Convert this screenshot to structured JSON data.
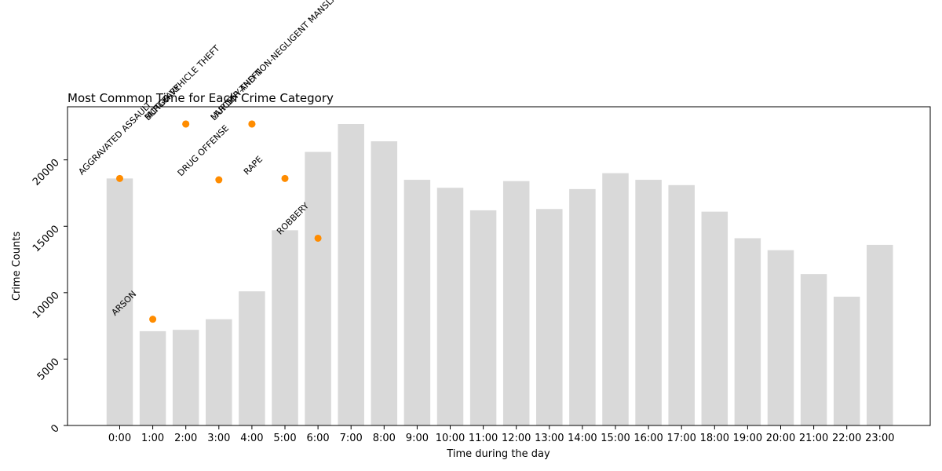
{
  "chart_data": {
    "type": "bar",
    "title": "Most Common Time for Each Crime Category",
    "xlabel": "Time during the day",
    "ylabel": "Crime Counts",
    "ylim": [
      0,
      24000
    ],
    "yticks": [
      0,
      5000,
      10000,
      15000,
      20000
    ],
    "grid": false,
    "categories": [
      "0:00",
      "1:00",
      "2:00",
      "3:00",
      "4:00",
      "5:00",
      "6:00",
      "7:00",
      "8:00",
      "9:00",
      "10:00",
      "11:00",
      "12:00",
      "13:00",
      "14:00",
      "15:00",
      "16:00",
      "17:00",
      "18:00",
      "19:00",
      "20:00",
      "21:00",
      "22:00",
      "23:00"
    ],
    "values": [
      18600,
      7100,
      7200,
      8000,
      10100,
      14700,
      20600,
      22700,
      21400,
      18500,
      17900,
      16200,
      18400,
      16300,
      17800,
      19000,
      18500,
      18100,
      16100,
      14100,
      13200,
      11400,
      9700,
      13600
    ],
    "bar_color": "#d9d9d9",
    "marker_color": "#ff8c00",
    "markers": [
      {
        "label": "AGGRAVATED ASSAULT",
        "category": "0:00",
        "value": 18600
      },
      {
        "label": "ARSON",
        "category": "1:00",
        "value": 8000
      },
      {
        "label": "BURGLARY",
        "category": "2:00",
        "value": 22700
      },
      {
        "label": "MOTOR VEHICLE THEFT",
        "category": "2:00",
        "value": 22700
      },
      {
        "label": "DRUG OFFENSE",
        "category": "3:00",
        "value": 18500
      },
      {
        "label": "MURDER AND NON-NEGLIGENT MANSLAUGHTER",
        "category": "4:00",
        "value": 22700
      },
      {
        "label": "LARCENY-THEFT",
        "category": "4:00",
        "value": 22700
      },
      {
        "label": "RAPE",
        "category": "5:00",
        "value": 18600
      },
      {
        "label": "ROBBERY",
        "category": "6:00",
        "value": 14100
      }
    ]
  }
}
